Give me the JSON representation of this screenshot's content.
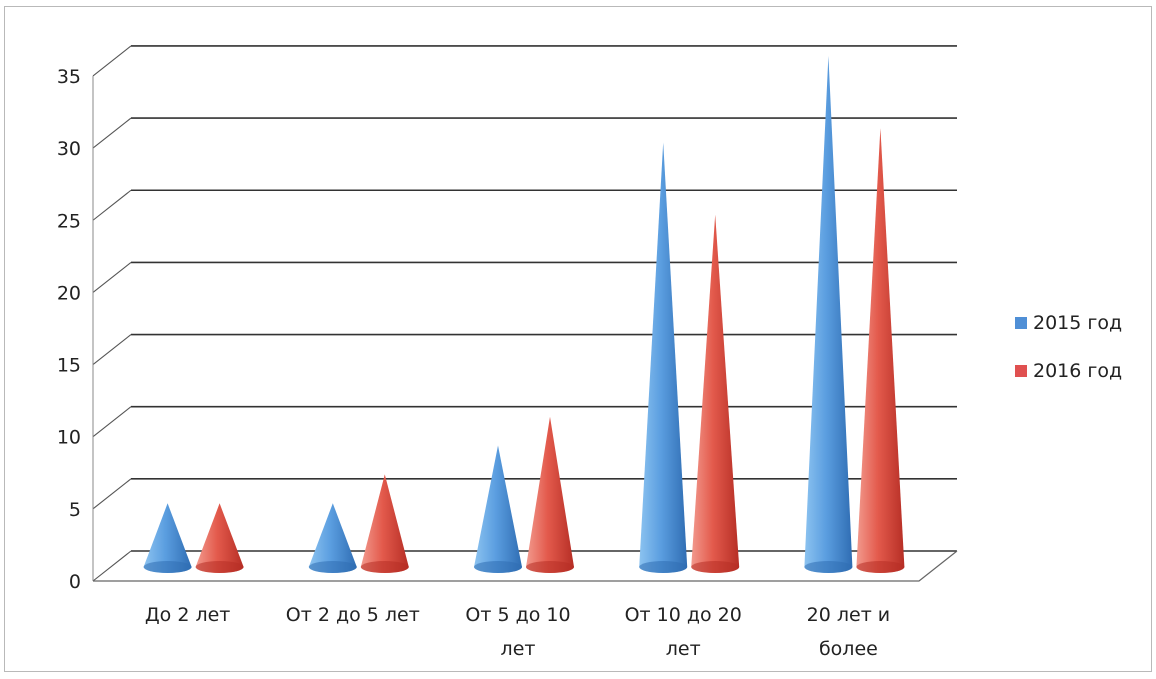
{
  "chart_data": {
    "type": "bar",
    "categories": [
      [
        "До 2 лет"
      ],
      [
        "От 2 до 5 лет"
      ],
      [
        "От 5 до 10",
        "лет"
      ],
      [
        "От 10 до 20",
        "лет"
      ],
      [
        "20 лет и",
        "более"
      ]
    ],
    "series": [
      {
        "name": "2015 год",
        "values": [
          4,
          4,
          8,
          29,
          35
        ],
        "color": "#4f8fd6"
      },
      {
        "name": "2016 год",
        "values": [
          4,
          6,
          10,
          24,
          30
        ],
        "color": "#e05050"
      }
    ],
    "title": "",
    "xlabel": "",
    "ylabel": "",
    "ylim": [
      0,
      35
    ],
    "yticks": [
      0,
      5,
      10,
      15,
      20,
      25,
      30,
      35
    ],
    "grid": true,
    "legend_position": "right",
    "mark_shape": "cone"
  }
}
